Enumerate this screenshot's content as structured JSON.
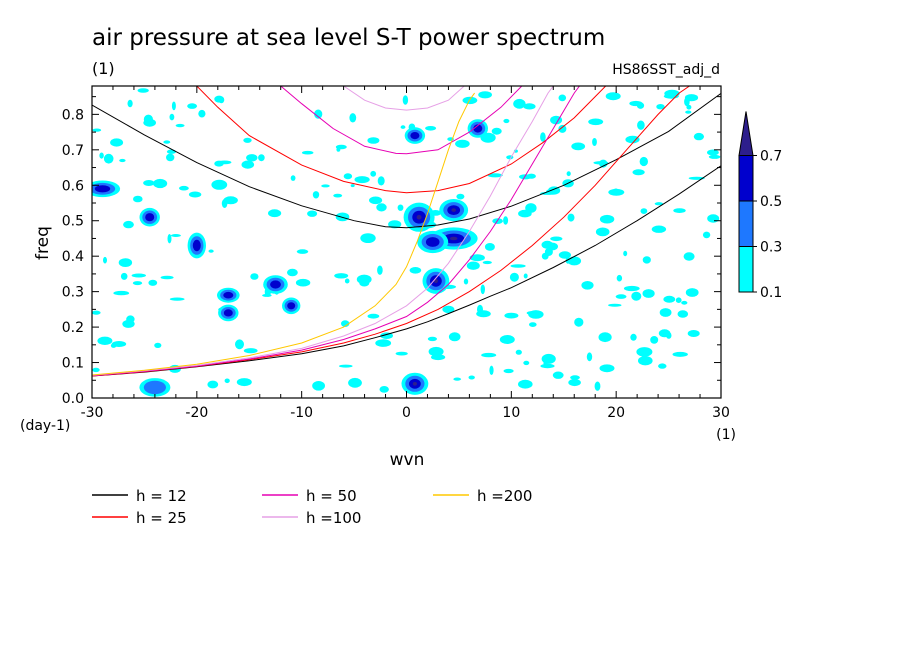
{
  "chart_data": {
    "type": "heatmap",
    "title": "air pressure at sea level S-T power spectrum",
    "subtitle_left": "(1)",
    "subtitle_right": "HS86SST_adj_d",
    "xlabel": "wvn",
    "ylabel": "freq",
    "x_unit": "(1)",
    "y_unit": "(day-1)",
    "xlim": [
      -30,
      30
    ],
    "ylim": [
      0,
      0.88
    ],
    "xticks": [
      -30,
      -20,
      -10,
      0,
      10,
      20,
      30
    ],
    "xtick_labels": [
      "-30",
      "-20",
      "-10",
      "0",
      "10",
      "20",
      "30"
    ],
    "yticks": [
      0,
      0.1,
      0.2,
      0.3,
      0.4,
      0.5,
      0.6,
      0.7,
      0.8
    ],
    "ytick_labels": [
      "0.0",
      "0.1",
      "0.2",
      "0.3",
      "0.4",
      "0.5",
      "0.6",
      "0.7",
      "0.8"
    ],
    "colorbar": {
      "levels": [
        0.1,
        0.3,
        0.5,
        0.7
      ],
      "labels": [
        "0.1",
        "0.3",
        "0.5",
        "0.7"
      ],
      "colors": [
        "#00ffff",
        "#1e78ff",
        "#0000cd",
        "#2d1e8c"
      ]
    },
    "contour_patches": [
      {
        "x": 0.8,
        "y": 0.04,
        "rx": 0.8,
        "ry": 0.02,
        "level": 3
      },
      {
        "x": -24,
        "y": 0.03,
        "rx": 1.0,
        "ry": 0.015,
        "level": 1
      },
      {
        "x": 2.8,
        "y": 0.33,
        "rx": 0.8,
        "ry": 0.025,
        "level": 3
      },
      {
        "x": 1.2,
        "y": 0.51,
        "rx": 1.0,
        "ry": 0.03,
        "level": 3
      },
      {
        "x": 4.5,
        "y": 0.53,
        "rx": 0.9,
        "ry": 0.02,
        "level": 3
      },
      {
        "x": 4.5,
        "y": 0.45,
        "rx": 1.8,
        "ry": 0.02,
        "level": 3
      },
      {
        "x": 2.5,
        "y": 0.44,
        "rx": 1.0,
        "ry": 0.02,
        "level": 2
      },
      {
        "x": 6.8,
        "y": 0.76,
        "rx": 0.5,
        "ry": 0.015,
        "level": 2
      },
      {
        "x": 0.8,
        "y": 0.74,
        "rx": 0.5,
        "ry": 0.012,
        "level": 2
      },
      {
        "x": -24.5,
        "y": 0.51,
        "rx": 0.5,
        "ry": 0.015,
        "level": 2
      },
      {
        "x": -20,
        "y": 0.43,
        "rx": 0.4,
        "ry": 0.025,
        "level": 2
      },
      {
        "x": -12.5,
        "y": 0.32,
        "rx": 0.7,
        "ry": 0.015,
        "level": 2
      },
      {
        "x": -17,
        "y": 0.24,
        "rx": 0.5,
        "ry": 0.012,
        "level": 2
      },
      {
        "x": -11,
        "y": 0.26,
        "rx": 0.4,
        "ry": 0.012,
        "level": 2
      },
      {
        "x": -29,
        "y": 0.59,
        "rx": 1.2,
        "ry": 0.012,
        "level": 2
      },
      {
        "x": -17,
        "y": 0.29,
        "rx": 0.6,
        "ry": 0.01,
        "level": 2
      }
    ],
    "series": [
      {
        "name": "h = 12",
        "label": "h = 12",
        "h": 12,
        "color": "#000000",
        "curves": [
          {
            "dir": "e",
            "n": 0,
            "points": [
              [
                -30,
                0.062
              ],
              [
                -25,
                0.073
              ],
              [
                -20,
                0.088
              ],
              [
                -15,
                0.105
              ],
              [
                -10,
                0.125
              ],
              [
                -6,
                0.147
              ],
              [
                -3,
                0.17
              ],
              [
                0,
                0.195
              ],
              [
                2,
                0.215
              ],
              [
                4,
                0.238
              ],
              [
                6,
                0.262
              ],
              [
                8,
                0.287
              ],
              [
                10,
                0.311
              ],
              [
                14,
                0.368
              ],
              [
                18,
                0.43
              ],
              [
                22,
                0.5
              ],
              [
                26,
                0.575
              ],
              [
                30,
                0.655
              ]
            ]
          },
          {
            "dir": "e",
            "n": 1,
            "points": [
              [
                -30,
                0.826
              ],
              [
                -25,
                0.742
              ],
              [
                -20,
                0.664
              ],
              [
                -15,
                0.596
              ],
              [
                -10,
                0.542
              ],
              [
                -5,
                0.5
              ],
              [
                -2,
                0.483
              ],
              [
                0,
                0.48
              ],
              [
                3,
                0.488
              ],
              [
                6,
                0.505
              ],
              [
                10,
                0.541
              ],
              [
                15,
                0.6
              ],
              [
                20,
                0.672
              ],
              [
                25,
                0.752
              ],
              [
                30,
                0.859
              ]
            ]
          }
        ]
      },
      {
        "name": "h = 25",
        "label": "h = 25",
        "h": 25,
        "color": "#ff0000",
        "curves": [
          {
            "dir": "e",
            "n": 0,
            "points": [
              [
                -30,
                0.062
              ],
              [
                -25,
                0.074
              ],
              [
                -20,
                0.089
              ],
              [
                -15,
                0.108
              ],
              [
                -10,
                0.13
              ],
              [
                -6,
                0.155
              ],
              [
                -3,
                0.18
              ],
              [
                0,
                0.21
              ],
              [
                3,
                0.25
              ],
              [
                6,
                0.3
              ],
              [
                9,
                0.36
              ],
              [
                12,
                0.43
              ],
              [
                15,
                0.51
              ],
              [
                18,
                0.6
              ],
              [
                21,
                0.7
              ],
              [
                24,
                0.8
              ],
              [
                26,
                0.86
              ],
              [
                27,
                0.88
              ]
            ]
          },
          {
            "dir": "e",
            "n": 1,
            "points": [
              [
                -20,
                0.88
              ],
              [
                -18,
                0.82
              ],
              [
                -15,
                0.74
              ],
              [
                -10,
                0.657
              ],
              [
                -6,
                0.611
              ],
              [
                -2,
                0.585
              ],
              [
                0,
                0.579
              ],
              [
                3,
                0.585
              ],
              [
                6,
                0.605
              ],
              [
                10,
                0.66
              ],
              [
                13,
                0.72
              ],
              [
                16,
                0.79
              ],
              [
                19,
                0.88
              ]
            ]
          }
        ]
      },
      {
        "name": "h = 50",
        "label": "h = 50",
        "h": 50,
        "color": "#e600b4",
        "curves": [
          {
            "dir": "e",
            "n": 0,
            "points": [
              [
                -30,
                0.063
              ],
              [
                -25,
                0.075
              ],
              [
                -20,
                0.09
              ],
              [
                -15,
                0.11
              ],
              [
                -10,
                0.135
              ],
              [
                -6,
                0.165
              ],
              [
                -3,
                0.195
              ],
              [
                0,
                0.23
              ],
              [
                2,
                0.27
              ],
              [
                4,
                0.32
              ],
              [
                6,
                0.39
              ],
              [
                8,
                0.47
              ],
              [
                10,
                0.56
              ],
              [
                12,
                0.66
              ],
              [
                14,
                0.76
              ],
              [
                16,
                0.86
              ],
              [
                16.5,
                0.88
              ]
            ]
          },
          {
            "dir": "e",
            "n": 1,
            "points": [
              [
                -12,
                0.88
              ],
              [
                -10,
                0.83
              ],
              [
                -7,
                0.76
              ],
              [
                -4,
                0.71
              ],
              [
                -1,
                0.69
              ],
              [
                0,
                0.689
              ],
              [
                3,
                0.7
              ],
              [
                6,
                0.75
              ],
              [
                9,
                0.82
              ],
              [
                11,
                0.88
              ]
            ]
          }
        ]
      },
      {
        "name": "h =100",
        "label": "h =100",
        "h": 100,
        "color": "#e6a0e6",
        "curves": [
          {
            "dir": "e",
            "n": 0,
            "points": [
              [
                -30,
                0.064
              ],
              [
                -25,
                0.077
              ],
              [
                -20,
                0.092
              ],
              [
                -15,
                0.113
              ],
              [
                -10,
                0.14
              ],
              [
                -6,
                0.175
              ],
              [
                -3,
                0.21
              ],
              [
                0,
                0.26
              ],
              [
                2,
                0.31
              ],
              [
                4,
                0.38
              ],
              [
                6,
                0.47
              ],
              [
                8,
                0.57
              ],
              [
                10,
                0.68
              ],
              [
                12,
                0.78
              ],
              [
                13.5,
                0.86
              ],
              [
                14,
                0.88
              ]
            ]
          },
          {
            "dir": "e",
            "n": 1,
            "points": [
              [
                -6,
                0.88
              ],
              [
                -4,
                0.84
              ],
              [
                -2,
                0.818
              ],
              [
                0,
                0.812
              ],
              [
                2,
                0.818
              ],
              [
                4,
                0.84
              ],
              [
                5.5,
                0.88
              ]
            ]
          }
        ]
      },
      {
        "name": "h =200",
        "label": "h =200",
        "h": 200,
        "color": "#ffc800",
        "curves": [
          {
            "dir": "e",
            "n": 0,
            "points": [
              [
                -30,
                0.065
              ],
              [
                -25,
                0.078
              ],
              [
                -20,
                0.095
              ],
              [
                -15,
                0.12
              ],
              [
                -10,
                0.155
              ],
              [
                -6,
                0.2
              ],
              [
                -3,
                0.26
              ],
              [
                -1,
                0.32
              ],
              [
                0,
                0.37
              ],
              [
                1,
                0.44
              ],
              [
                2,
                0.52
              ],
              [
                3,
                0.61
              ],
              [
                4,
                0.7
              ],
              [
                5,
                0.78
              ],
              [
                6,
                0.84
              ],
              [
                6.5,
                0.86
              ]
            ]
          }
        ]
      }
    ]
  }
}
